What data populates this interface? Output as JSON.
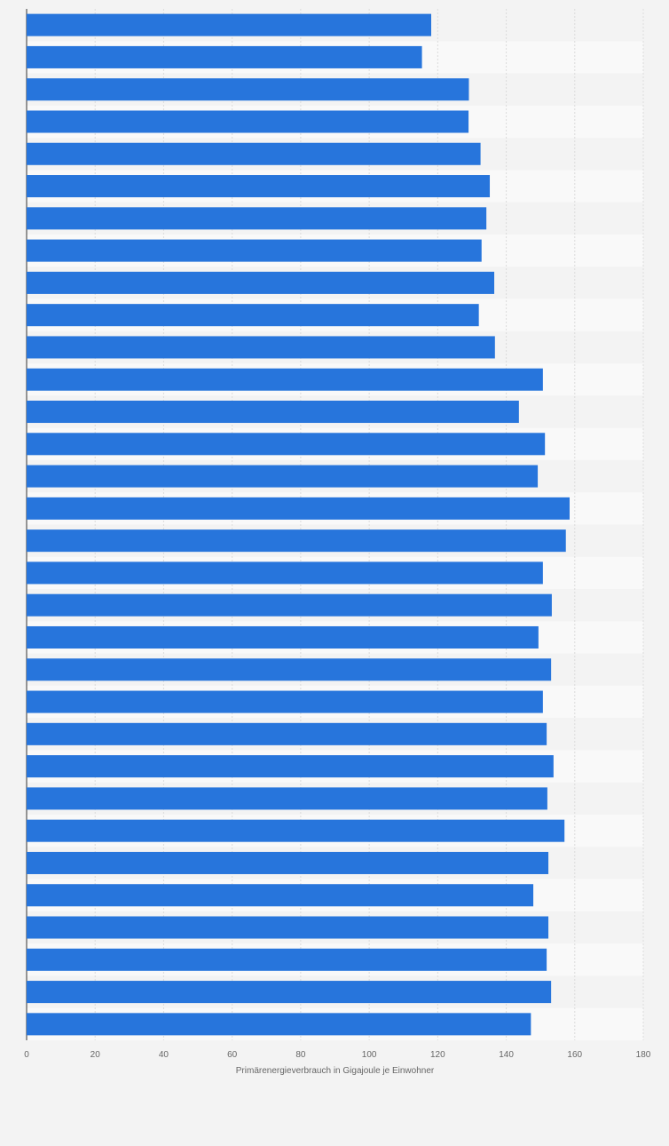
{
  "chart_data": {
    "type": "bar",
    "orientation": "horizontal",
    "title": "",
    "xlabel": "Primärenergieverbrauch in Gigajoule je Einwohner",
    "ylabel": "",
    "xlim": [
      0,
      180
    ],
    "ticks": [
      0,
      20,
      40,
      60,
      80,
      100,
      120,
      140,
      160,
      180
    ],
    "grid": true,
    "legend": "none",
    "bar_color": "#2775dc",
    "values": [
      118.1,
      115.4,
      129.1,
      129.0,
      132.5,
      135.2,
      134.2,
      132.8,
      136.5,
      132.0,
      136.7,
      150.7,
      143.7,
      151.3,
      149.2,
      158.5,
      157.4,
      150.7,
      153.3,
      149.4,
      153.1,
      150.7,
      151.8,
      153.8,
      152.0,
      157.0,
      152.3,
      147.9,
      152.3,
      151.8,
      153.1,
      147.2
    ]
  }
}
